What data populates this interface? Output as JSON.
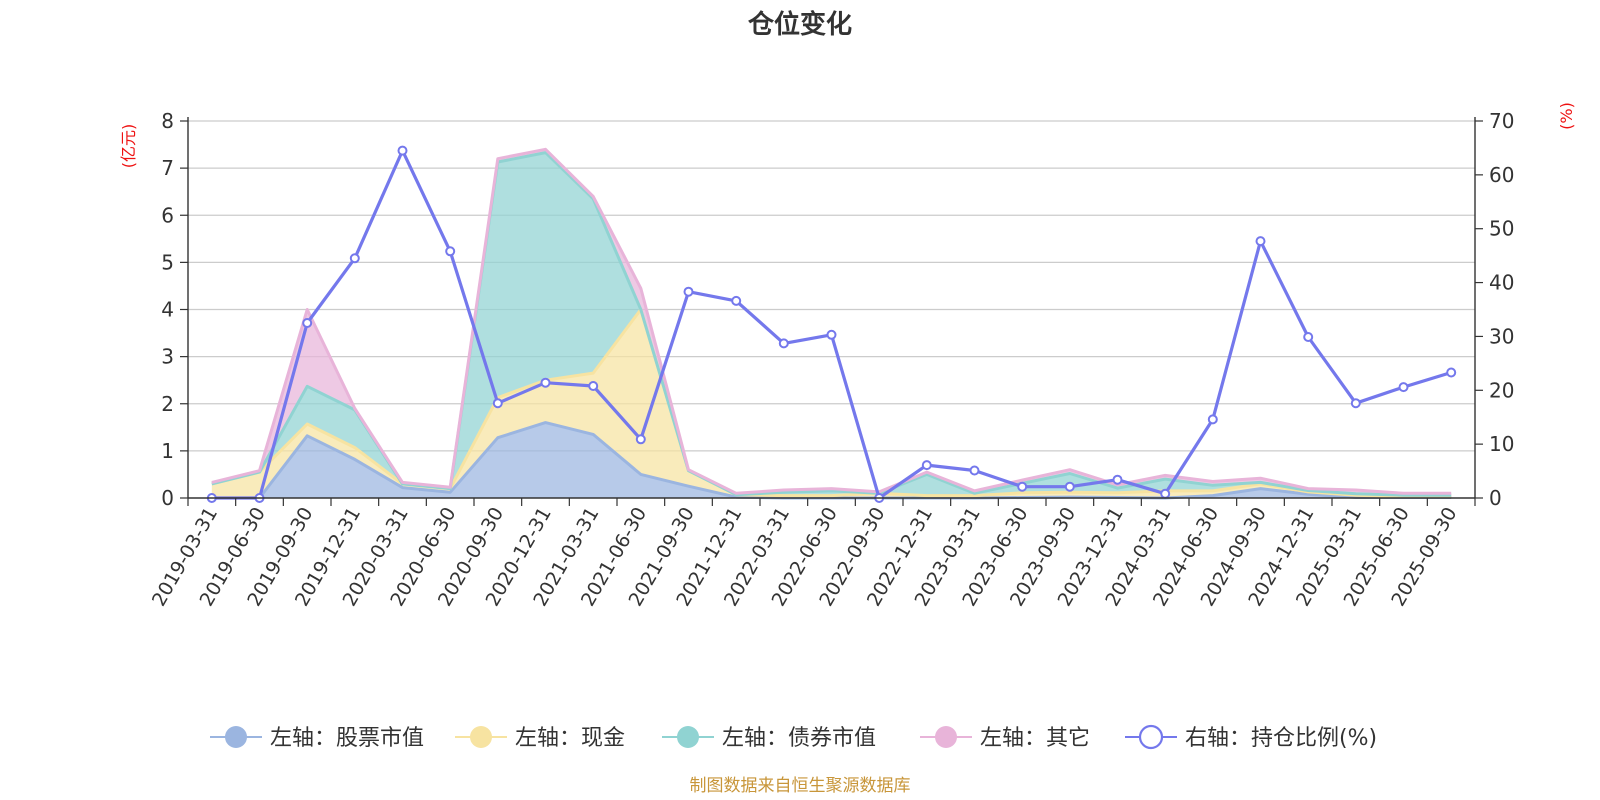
{
  "chart_data": {
    "type": "area",
    "title": "仓位变化",
    "left_axis": {
      "unit": "(亿元)",
      "ylim": [
        0,
        8
      ],
      "ticks": [
        0,
        1,
        2,
        3,
        4,
        5,
        6,
        7,
        8
      ]
    },
    "right_axis": {
      "unit": "(%)",
      "ylim": [
        0,
        70
      ],
      "ticks": [
        0,
        10,
        20,
        30,
        40,
        50,
        60,
        70
      ]
    },
    "categories": [
      "2019-03-31",
      "2019-06-30",
      "2019-09-30",
      "2019-12-31",
      "2020-03-31",
      "2020-06-30",
      "2020-09-30",
      "2020-12-31",
      "2021-03-31",
      "2021-06-30",
      "2021-09-30",
      "2021-12-31",
      "2022-03-31",
      "2022-06-30",
      "2022-09-30",
      "2022-12-31",
      "2023-03-31",
      "2023-06-30",
      "2023-09-30",
      "2023-12-31",
      "2024-03-31",
      "2024-06-30",
      "2024-09-30",
      "2024-12-31",
      "2025-03-31",
      "2025-06-30",
      "2025-09-30"
    ],
    "stack_series": [
      {
        "name": "左轴：股票市值",
        "color": "#9bb5e0",
        "values": [
          0,
          0,
          1.32,
          0.82,
          0.22,
          0.12,
          1.28,
          1.6,
          1.35,
          0.5,
          0.25,
          0.02,
          0,
          0,
          0,
          0,
          0,
          0.01,
          0.02,
          0.01,
          0,
          0.05,
          0.2,
          0.08,
          0.01,
          0.01,
          0.01
        ]
      },
      {
        "name": "左轴：现金",
        "color": "#f7e3a1",
        "values": [
          0.3,
          0.55,
          0.25,
          0.25,
          0.08,
          0.08,
          0.85,
          0.9,
          1.3,
          3.5,
          0.33,
          0.05,
          0.05,
          0.05,
          0.1,
          0.05,
          0.05,
          0.1,
          0.1,
          0.1,
          0.15,
          0.1,
          0.1,
          0.05,
          0.05,
          0.02,
          0.02
        ]
      },
      {
        "name": "左轴：债券市值",
        "color": "#90d3d2",
        "values": [
          0,
          0,
          0.8,
          0.8,
          0,
          0,
          5.0,
          4.83,
          3.7,
          0,
          0,
          0,
          0.07,
          0.1,
          0,
          0.45,
          0.05,
          0.2,
          0.4,
          0.1,
          0.25,
          0.12,
          0.03,
          0.03,
          0.03,
          0.03,
          0.03
        ]
      },
      {
        "name": "左轴：其它",
        "color": "#e8b4d9",
        "values": [
          0.03,
          0.03,
          1.63,
          0.03,
          0.03,
          0.03,
          0.07,
          0.07,
          0.05,
          0.45,
          0.02,
          0.03,
          0.05,
          0.05,
          0.03,
          0.05,
          0.05,
          0.07,
          0.08,
          0.07,
          0.08,
          0.08,
          0.09,
          0.04,
          0.08,
          0.04,
          0.04
        ]
      }
    ],
    "line_series": {
      "name": "右轴：持仓比例(%)",
      "color": "#7478ec",
      "values": [
        0,
        0,
        32.5,
        44.5,
        64.5,
        45.8,
        17.6,
        21.4,
        20.8,
        10.9,
        38.3,
        36.6,
        28.7,
        30.3,
        0,
        6.1,
        5.1,
        2.1,
        2.1,
        3.4,
        0.8,
        14.6,
        47.7,
        29.9,
        17.6,
        20.6,
        23.3
      ]
    },
    "grid": true,
    "legend_position": "bottom"
  },
  "footer": {
    "source": "制图数据来自恒生聚源数据库",
    "source_color": "#c8963a"
  },
  "colors": {
    "axis_unit": "#ee1111",
    "grid": "#cccccc",
    "axis": "#333333"
  }
}
